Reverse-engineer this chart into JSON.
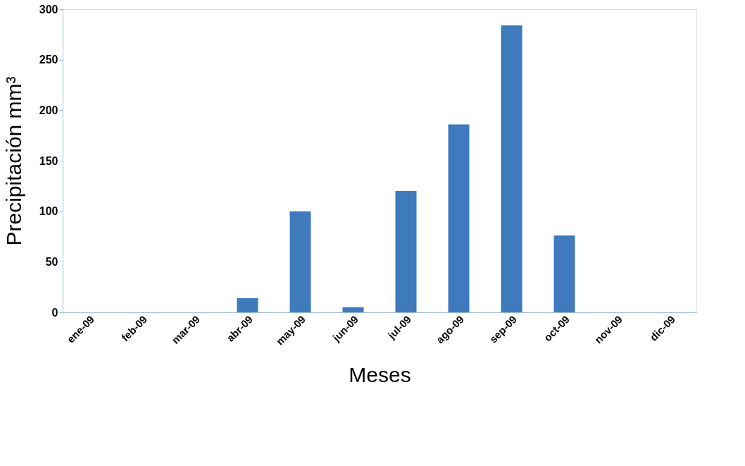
{
  "chart_data": {
    "type": "bar",
    "xlabel": "Meses",
    "ylabel": "Precipitación mm³",
    "categories": [
      "ene-09",
      "feb-09",
      "mar-09",
      "abr-09",
      "may-09",
      "jun-09",
      "jul-09",
      "ago-09",
      "sep-09",
      "oct-09",
      "nov-09",
      "dic-09"
    ],
    "series": [
      {
        "color": "#3f7abd",
        "values": [
          0,
          0,
          0,
          14,
          100,
          5,
          120,
          186,
          284,
          76,
          0,
          0
        ]
      }
    ],
    "ylim": [
      0,
      300
    ],
    "yticks": [
      0,
      50,
      100,
      150,
      200,
      250,
      300
    ],
    "grid": false,
    "legend": false
  }
}
